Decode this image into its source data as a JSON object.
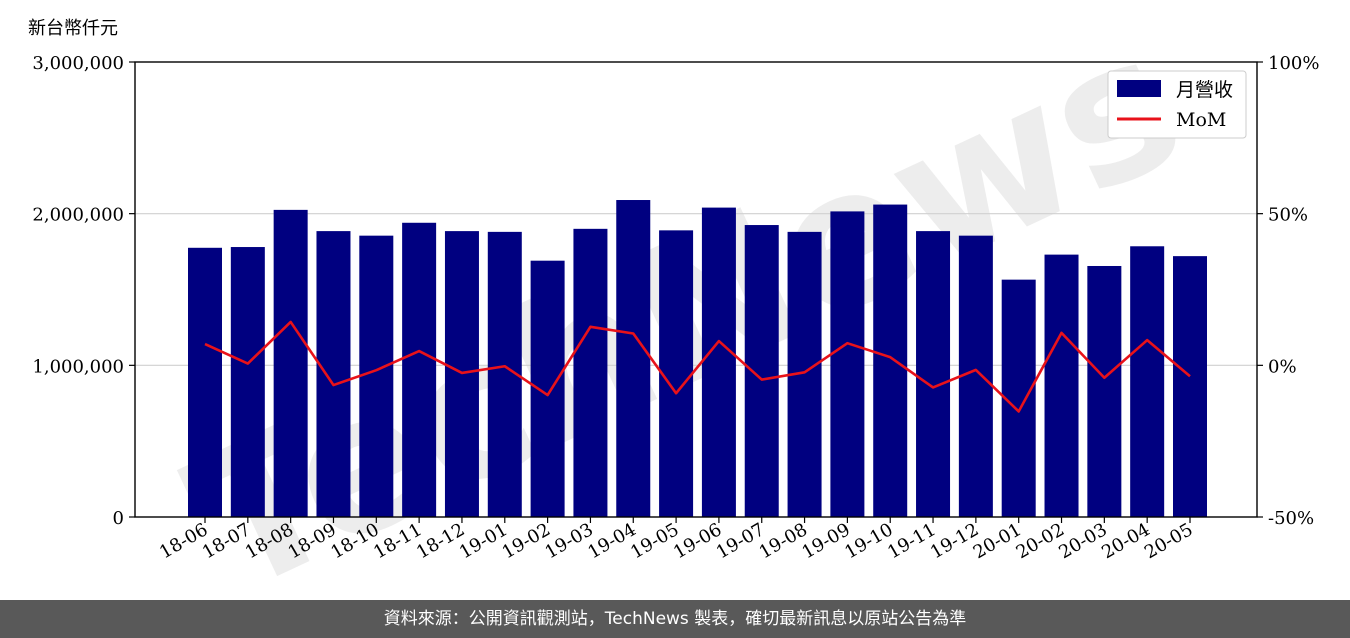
{
  "footer": {
    "text": "資料來源：公開資訊觀測站，TechNews 製表，確切最新訊息以原站公告為準"
  },
  "chart_data": {
    "type": "bar",
    "unit_label": "新台幣仟元",
    "watermark": "TechNews",
    "categories": [
      "18-06",
      "18-07",
      "18-08",
      "18-09",
      "18-10",
      "18-11",
      "18-12",
      "19-01",
      "19-02",
      "19-03",
      "19-04",
      "19-05",
      "19-06",
      "19-07",
      "19-08",
      "19-09",
      "19-10",
      "19-11",
      "19-12",
      "20-01",
      "20-02",
      "20-03",
      "20-04",
      "20-05"
    ],
    "series": [
      {
        "name": "月營收",
        "type": "bar",
        "axis": "left",
        "color": "#000080",
        "values": [
          1775000,
          1780000,
          2025000,
          1885000,
          1855000,
          1940000,
          1885000,
          1880000,
          1690000,
          1900000,
          2090000,
          1890000,
          2040000,
          1925000,
          1880000,
          2015000,
          2060000,
          1885000,
          1855000,
          1565000,
          1730000,
          1655000,
          1785000,
          1720000
        ]
      },
      {
        "name": "MoM",
        "type": "line",
        "axis": "right",
        "color": "#e8121a",
        "values": [
          7.0,
          0.6,
          14.3,
          -6.5,
          -1.6,
          4.7,
          -2.5,
          -0.3,
          -9.8,
          12.7,
          10.5,
          -9.2,
          8.0,
          -4.7,
          -2.3,
          7.3,
          2.7,
          -7.3,
          -1.5,
          -15.2,
          10.7,
          -4.1,
          8.3,
          -3.6
        ]
      }
    ],
    "ylim_left": [
      0,
      3000000
    ],
    "yticks_left": [
      "0",
      "1,000,000",
      "2,000,000",
      "3,000,000"
    ],
    "ylim_right": [
      -50,
      100
    ],
    "yticks_right": [
      "-50%",
      "0%",
      "50%",
      "100%"
    ],
    "grid": true,
    "legend_position": "top-right",
    "colors": {
      "bar": "#000080",
      "line": "#e8121a",
      "footer_bg": "#595959"
    }
  }
}
